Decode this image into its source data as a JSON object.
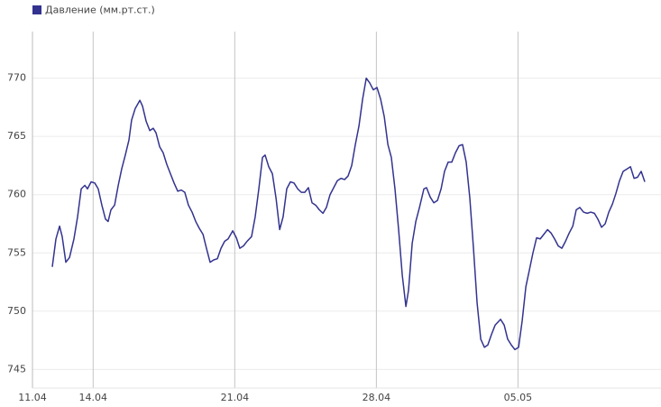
{
  "chart_data": {
    "type": "line",
    "legend": "top-left",
    "grid": true,
    "xlim": [
      0,
      31.07
    ],
    "xticks": [
      {
        "value": 0,
        "label": "11.04"
      },
      {
        "value": 3,
        "label": "14.04"
      },
      {
        "value": 10,
        "label": "21.04"
      },
      {
        "value": 17,
        "label": "28.04"
      },
      {
        "value": 24,
        "label": "05.05"
      }
    ],
    "ylim": [
      743.4,
      774
    ],
    "yticks": [
      745,
      750,
      755,
      760,
      765,
      770
    ],
    "x": [
      0.98,
      1.16,
      1.34,
      1.47,
      1.65,
      1.83,
      2.05,
      2.23,
      2.41,
      2.59,
      2.72,
      2.9,
      3.08,
      3.25,
      3.43,
      3.61,
      3.74,
      3.88,
      4.06,
      4.24,
      4.41,
      4.59,
      4.77,
      4.9,
      5.08,
      5.31,
      5.44,
      5.62,
      5.8,
      5.97,
      6.11,
      6.29,
      6.46,
      6.64,
      6.82,
      7.0,
      7.18,
      7.36,
      7.53,
      7.71,
      7.89,
      8.07,
      8.25,
      8.43,
      8.6,
      8.78,
      8.96,
      9.14,
      9.32,
      9.5,
      9.67,
      9.9,
      10.08,
      10.25,
      10.43,
      10.61,
      10.83,
      11.01,
      11.19,
      11.37,
      11.5,
      11.68,
      11.86,
      12.04,
      12.22,
      12.39,
      12.57,
      12.75,
      12.93,
      13.11,
      13.29,
      13.46,
      13.64,
      13.82,
      14.0,
      14.18,
      14.36,
      14.53,
      14.71,
      14.89,
      15.07,
      15.25,
      15.43,
      15.6,
      15.78,
      15.96,
      16.14,
      16.32,
      16.5,
      16.67,
      16.85,
      17.03,
      17.21,
      17.39,
      17.57,
      17.74,
      17.92,
      18.1,
      18.28,
      18.46,
      18.59,
      18.77,
      18.95,
      19.13,
      19.35,
      19.48,
      19.66,
      19.84,
      20.02,
      20.2,
      20.37,
      20.55,
      20.73,
      20.91,
      21.09,
      21.26,
      21.44,
      21.62,
      21.8,
      21.98,
      22.16,
      22.34,
      22.51,
      22.69,
      22.87,
      23.14,
      23.32,
      23.49,
      23.67,
      23.85,
      24.03,
      24.21,
      24.39,
      24.56,
      24.74,
      24.92,
      25.1,
      25.28,
      25.46,
      25.64,
      25.81,
      25.99,
      26.17,
      26.35,
      26.53,
      26.71,
      26.88,
      27.06,
      27.24,
      27.42,
      27.6,
      27.78,
      27.95,
      28.13,
      28.31,
      28.49,
      28.67,
      28.84,
      29.02,
      29.2,
      29.38,
      29.56,
      29.74,
      29.91,
      30.09,
      30.27
    ],
    "series": [
      {
        "name": "Давление (мм.рт.ст.)",
        "color": "#33338f",
        "values": [
          753.8,
          756.2,
          757.3,
          756.4,
          754.2,
          754.6,
          756.2,
          758.1,
          760.5,
          760.8,
          760.5,
          761.1,
          761.0,
          760.5,
          759.1,
          757.9,
          757.7,
          758.7,
          759.1,
          760.8,
          762.2,
          763.4,
          764.7,
          766.4,
          767.4,
          768.1,
          767.6,
          766.3,
          765.5,
          765.7,
          765.3,
          764.1,
          763.6,
          762.6,
          761.8,
          761.0,
          760.3,
          760.4,
          760.2,
          759.1,
          758.5,
          757.7,
          757.1,
          756.6,
          755.4,
          754.2,
          754.4,
          754.5,
          755.4,
          756.0,
          756.2,
          756.9,
          756.3,
          755.4,
          755.6,
          756.0,
          756.4,
          758.1,
          760.5,
          763.2,
          763.4,
          762.4,
          761.8,
          759.7,
          757.0,
          758.1,
          760.5,
          761.1,
          761.0,
          760.5,
          760.2,
          760.2,
          760.6,
          759.3,
          759.1,
          758.7,
          758.4,
          758.9,
          760.0,
          760.6,
          761.2,
          761.4,
          761.3,
          761.6,
          762.5,
          764.3,
          765.9,
          768.2,
          770.0,
          769.6,
          769.0,
          769.2,
          768.2,
          766.7,
          764.3,
          763.2,
          760.5,
          757.0,
          753.1,
          750.4,
          751.8,
          755.8,
          757.7,
          758.9,
          760.5,
          760.6,
          759.8,
          759.3,
          759.5,
          760.5,
          762.0,
          762.8,
          762.8,
          763.6,
          764.2,
          764.3,
          762.8,
          759.7,
          755.4,
          750.7,
          747.6,
          746.9,
          747.1,
          748.0,
          748.8,
          749.3,
          748.8,
          747.6,
          747.1,
          746.7,
          746.9,
          749.2,
          752.1,
          753.5,
          755.0,
          756.3,
          756.2,
          756.6,
          757.0,
          756.7,
          756.2,
          755.6,
          755.4,
          756.0,
          756.7,
          757.3,
          758.7,
          758.9,
          758.5,
          758.4,
          758.5,
          758.4,
          757.9,
          757.2,
          757.5,
          758.5,
          759.2,
          760.1,
          761.2,
          762.0,
          762.2,
          762.4,
          761.4,
          761.5,
          762.0,
          761.1
        ]
      }
    ]
  }
}
